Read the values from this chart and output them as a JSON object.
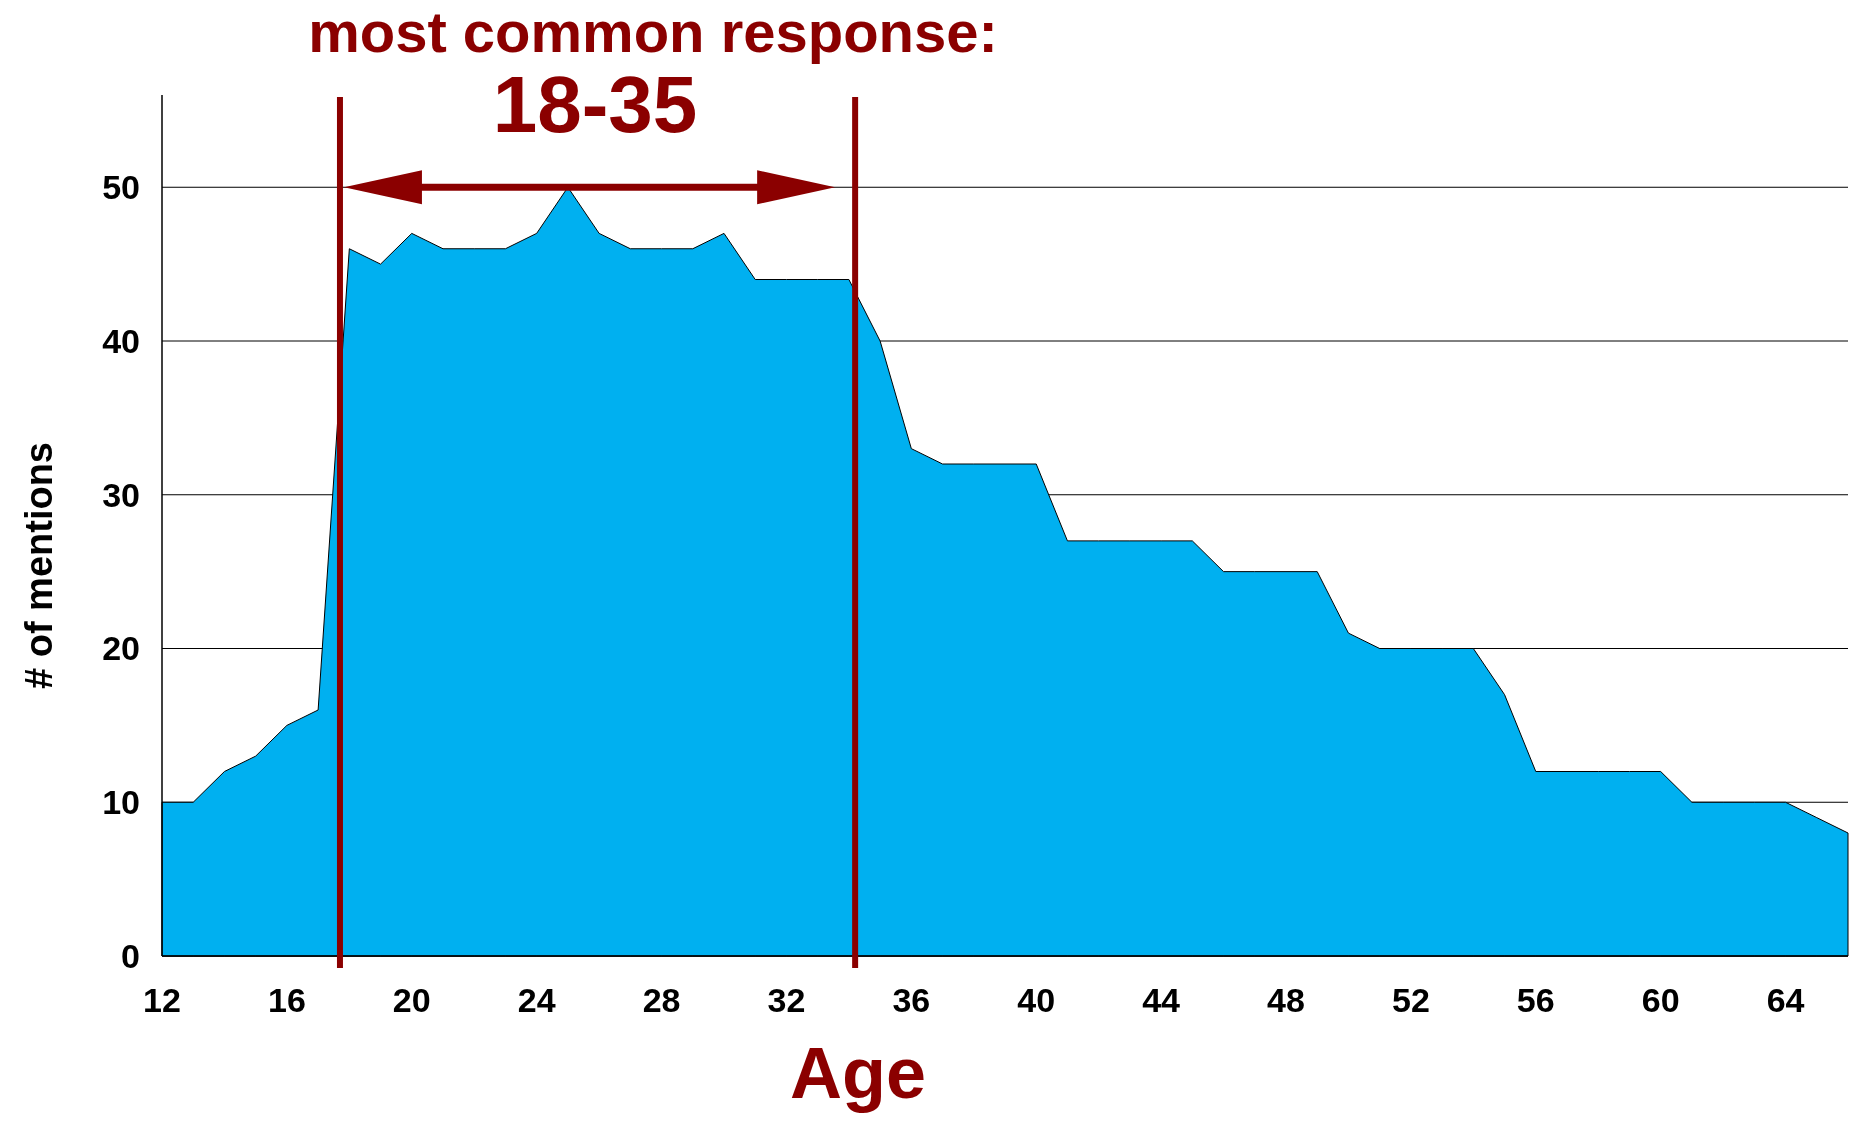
{
  "chart_data": {
    "type": "area",
    "title": "most common response:",
    "subtitle": "18-35",
    "xlabel": "Age",
    "ylabel": "# of mentions",
    "x": [
      12,
      13,
      14,
      15,
      16,
      17,
      18,
      19,
      20,
      21,
      22,
      23,
      24,
      25,
      26,
      27,
      28,
      29,
      30,
      31,
      32,
      33,
      34,
      35,
      36,
      37,
      38,
      39,
      40,
      41,
      42,
      43,
      44,
      45,
      46,
      47,
      48,
      49,
      50,
      51,
      52,
      53,
      54,
      55,
      56,
      57,
      58,
      59,
      60,
      61,
      62,
      63,
      64,
      65,
      66
    ],
    "series": [
      {
        "color": "#00b0f0",
        "values": [
          10,
          10,
          12,
          13,
          15,
          16,
          46,
          45,
          47,
          46,
          46,
          46,
          47,
          50,
          47,
          46,
          46,
          46,
          47,
          44,
          44,
          44,
          44,
          40,
          33,
          32,
          32,
          32,
          32,
          27,
          27,
          27,
          27,
          27,
          25,
          25,
          25,
          25,
          21,
          20,
          20,
          20,
          20,
          17,
          12,
          12,
          12,
          12,
          12,
          10,
          10,
          10,
          10,
          9,
          8
        ]
      }
    ],
    "xlim": [
      12,
      66
    ],
    "ylim": [
      0,
      56
    ],
    "xticks": [
      12,
      16,
      20,
      24,
      28,
      32,
      36,
      40,
      44,
      48,
      52,
      56,
      60,
      64
    ],
    "yticks": [
      0,
      10,
      20,
      30,
      40,
      50
    ],
    "grid": "y",
    "ref_lines": [
      {
        "axis": "x",
        "value": 17.7,
        "color": "#8b0000"
      },
      {
        "axis": "x",
        "value": 34.2,
        "color": "#8b0000"
      }
    ]
  }
}
